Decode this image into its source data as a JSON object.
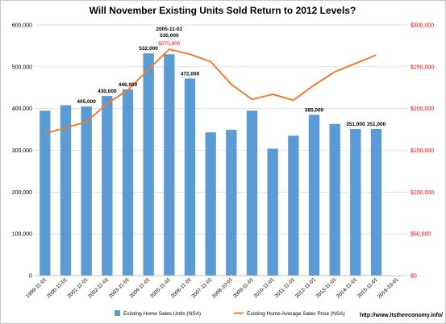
{
  "chart_data": {
    "type": "bar",
    "title": "Will November Existing Units Sold  Return to 2012 Levels?",
    "categories": [
      "1999-11-01",
      "2000-11-01",
      "2001-11-01",
      "2002-11-01",
      "2003-11-01",
      "2004-11-01",
      "2005-11-01",
      "2006-11-01",
      "2007-11-01",
      "2008-10-01",
      "2009-11-01",
      "2010-11-01",
      "2011-11-01",
      "2012-11-01",
      "2013-11-01",
      "2014-11-01",
      "2015-11-01",
      "2016-10-01"
    ],
    "series": [
      {
        "name": "Existing Home Sales Units (NSA)",
        "type": "bar",
        "axis": "left",
        "color": "#5b9bd5",
        "values": [
          395000,
          408000,
          405000,
          430000,
          446000,
          532000,
          530000,
          472000,
          343000,
          349000,
          395000,
          304000,
          335000,
          385000,
          363000,
          351000,
          351000,
          null
        ]
      },
      {
        "name": "Existing Home Average Sales Price (NSA)",
        "type": "line",
        "axis": "right",
        "color": "#ed7d31",
        "values": [
          170000,
          177000,
          184000,
          206000,
          222000,
          247000,
          270900,
          265000,
          256000,
          229000,
          211000,
          217000,
          210000,
          228000,
          244000,
          254000,
          264000,
          null
        ]
      }
    ],
    "bar_labels": [
      {
        "index": 2,
        "text": "405,000"
      },
      {
        "index": 3,
        "text": "430,000"
      },
      {
        "index": 4,
        "text": "446,000"
      },
      {
        "index": 5,
        "text": "532,000"
      },
      {
        "index": 7,
        "text": "472,000"
      },
      {
        "index": 13,
        "text": "385,000"
      },
      {
        "index": 15,
        "text": "351,000"
      },
      {
        "index": 16,
        "text": "351,000"
      }
    ],
    "callout": {
      "index": 6,
      "date": "2005-11-01",
      "units": "530,000",
      "price": "$270,900"
    },
    "yaxis_left": {
      "min": 0,
      "max": 600000,
      "step": 100000,
      "ticks": [
        "0",
        "100,000",
        "200,000",
        "300,000",
        "400,000",
        "500,000",
        "600,000"
      ]
    },
    "yaxis_right": {
      "min": 0,
      "max": 300000,
      "step": 50000,
      "ticks": [
        "$0",
        "$50,000",
        "$100,000",
        "$150,000",
        "$200,000",
        "$250,000",
        "$300,000"
      ],
      "color": "#ff0000"
    },
    "grid": true,
    "legend_position": "bottom",
    "source_text": "http://www.itstheeconomy.info/"
  }
}
